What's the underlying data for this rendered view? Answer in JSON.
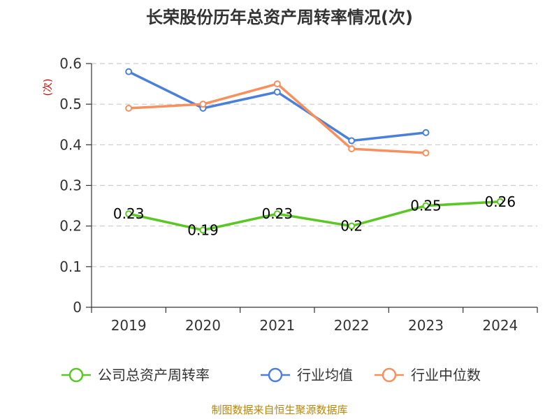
{
  "chart_data": {
    "type": "line",
    "title": "长荣股份历年总资产周转率情况(次)",
    "xlabel": "",
    "ylabel": "(次)",
    "categories": [
      "2019",
      "2020",
      "2021",
      "2022",
      "2023",
      "2024"
    ],
    "ylim": [
      0,
      0.6
    ],
    "yticks": [
      "0",
      "0.1",
      "0.2",
      "0.3",
      "0.4",
      "0.5",
      "0.6"
    ],
    "grid": true,
    "legend_position": "bottom",
    "series": [
      {
        "name": "公司总资产周转率",
        "color": "#5ac724",
        "values": [
          0.23,
          0.19,
          0.23,
          0.2,
          0.25,
          0.26
        ],
        "labels": [
          "0.23",
          "0.19",
          "0.23",
          "0.2",
          "0.25",
          "0.26"
        ]
      },
      {
        "name": "行业均值",
        "color": "#4a7fdc",
        "values": [
          0.58,
          0.49,
          0.53,
          0.41,
          0.43,
          null
        ]
      },
      {
        "name": "行业中位数",
        "color": "#f7905c",
        "values": [
          0.49,
          0.5,
          0.55,
          0.39,
          0.38,
          null
        ]
      }
    ],
    "source": "制图数据来自恒生聚源数据库"
  }
}
